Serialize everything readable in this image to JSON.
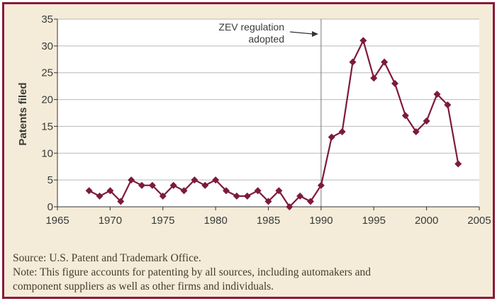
{
  "chart_data": {
    "type": "line",
    "title": "",
    "xlabel": "",
    "ylabel": "Patents filed",
    "xlim": [
      1965,
      2005
    ],
    "ylim": [
      0,
      35
    ],
    "xticks": [
      "1965",
      "1970",
      "1975",
      "1980",
      "1985",
      "1990",
      "1995",
      "2000",
      "2005"
    ],
    "yticks": [
      "0",
      "5",
      "10",
      "15",
      "20",
      "25",
      "30",
      "35"
    ],
    "grid": "horizontal",
    "series": [
      {
        "color": "#7d1a3c",
        "marker": "diamond",
        "x": [
          1968,
          1969,
          1970,
          1971,
          1972,
          1973,
          1974,
          1975,
          1976,
          1977,
          1978,
          1979,
          1980,
          1981,
          1982,
          1983,
          1984,
          1985,
          1986,
          1987,
          1988,
          1989,
          1990,
          1991,
          1992,
          1993,
          1994,
          1995,
          1996,
          1997,
          1998,
          1999,
          2000,
          2001,
          2002,
          2003
        ],
        "y": [
          3,
          2,
          3,
          1,
          5,
          4,
          4,
          2,
          4,
          3,
          5,
          4,
          5,
          3,
          2,
          2,
          3,
          1,
          3,
          0,
          2,
          1,
          4,
          13,
          14,
          27,
          31,
          24,
          27,
          23,
          17,
          14,
          16,
          21,
          19,
          8
        ]
      }
    ],
    "annotations": [
      {
        "x": 1990,
        "lines": [
          "ZEV regulation",
          "adopted"
        ]
      }
    ]
  },
  "notes": {
    "source": "Source: U.S. Patent and Trademark Office.",
    "note_line1": "Note: This figure accounts for patenting by all sources, including automakers and",
    "note_line2": "component suppliers as well as other firms and individuals."
  },
  "colors": {
    "border": "#8b1a3a",
    "background": "#f4ecd8",
    "line": "#7d1a3c",
    "grid": "#b9b9b9"
  }
}
